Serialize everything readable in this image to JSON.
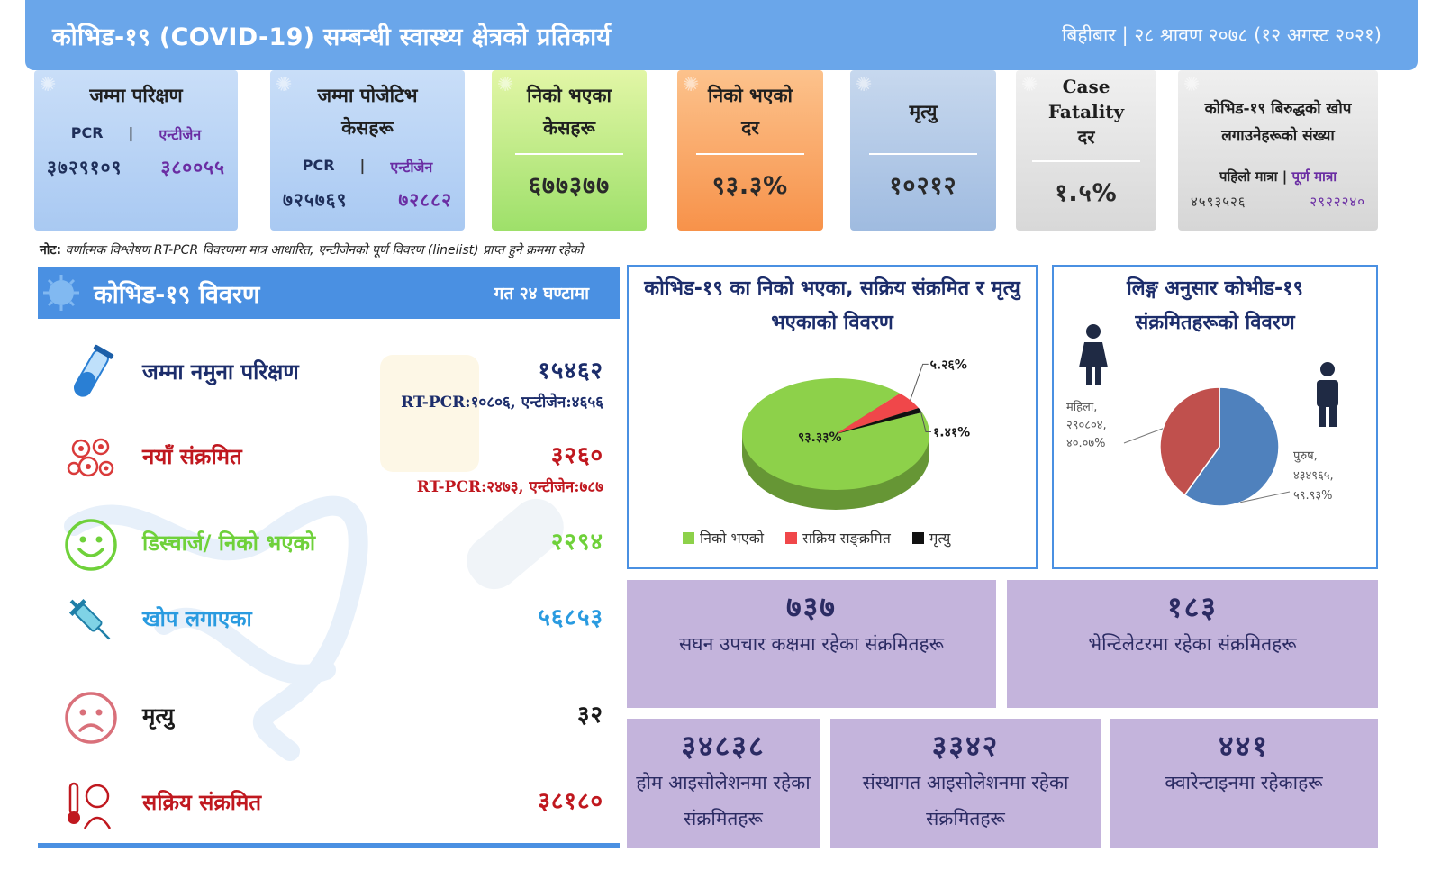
{
  "header": {
    "title": "कोभिड-१९ (COVID-19) सम्बन्धी स्वास्थ्य क्षेत्रको प्रतिकार्य",
    "date": "बिहीबार | २८ श्रावण २०७८ (१२ अगस्ट २०२१)"
  },
  "cards": {
    "total_tests": {
      "label": "जम्मा परिक्षण",
      "pcr_label": "PCR",
      "sep": "|",
      "antigen_label": "एन्टीजेन",
      "pcr_value": "३७२९१०९",
      "antigen_value": "३८००५५"
    },
    "total_positive": {
      "label": "जम्मा पोजेटिभ केसहरू",
      "pcr_label": "PCR",
      "sep": "|",
      "antigen_label": "एन्टीजेन",
      "pcr_value": "७२५७६९",
      "antigen_value": "७२८८२"
    },
    "recovered": {
      "label": "निको भएका केसहरू",
      "value": "६७७३७७"
    },
    "recovery_rate": {
      "label": "निको भएको दर",
      "value": "९३.३%"
    },
    "deaths": {
      "label": "मृत्यु",
      "value": "१०२१२"
    },
    "cfr": {
      "label": "Case Fatality दर",
      "value": "१.५%"
    },
    "vaccinated": {
      "label": "कोभिड-१९ बिरुद्धको खोप लगाउनेहरूको संख्या",
      "first_dose_label": "पहिलो मात्रा",
      "sep": "|",
      "full_dose_label": "पूर्ण मात्रा",
      "first_dose_value": "४५९३५२६",
      "full_dose_value": "२९२२२४०"
    }
  },
  "note": {
    "prefix": "नोट:",
    "text": "वर्णात्मक विश्लेषण RT-PCR विवरणमा मात्र आधारित, एन्टीजेनको पूर्ण विवरण (linelist) प्राप्त हुने क्रममा रहेको"
  },
  "last24": {
    "title": "कोभिड-१९ विवरण",
    "subtitle": "गत २४ घण्टामा",
    "rows": [
      {
        "label": "जम्मा नमुना परिक्षण",
        "value": "१५४६२",
        "sub": "RT-PCR:१०८०६, एन्टीजेन:४६५६"
      },
      {
        "label": "नयाँ संक्रमित",
        "value": "३२६०",
        "sub": "RT-PCR:२४७३, एन्टीजेन:७८७"
      },
      {
        "label": "डिस्चार्ज/ निको भएको",
        "value": "२२९४"
      },
      {
        "label": "खोप लगाएका",
        "value": "५६८५३"
      },
      {
        "label": "मृत्यु",
        "value": "३२"
      },
      {
        "label": "सक्रिय संक्रमित",
        "value": "३८१८०"
      }
    ]
  },
  "chart_data": [
    {
      "type": "pie",
      "title": "कोभिड-१९ का निको भएका, सक्रिय संक्रमित र मृत्यु भएकाको विवरण",
      "categories": [
        "निको भएको",
        "सक्रिय सङ्क्रमित",
        "मृत्यु"
      ],
      "values": [
        93.33,
        5.26,
        1.41
      ],
      "labels": [
        "९३.३३%",
        "५.२६%",
        "१.४१%"
      ],
      "colors": [
        "#8dd14a",
        "#f0474a",
        "#111111"
      ],
      "legend": "bottom"
    },
    {
      "type": "pie",
      "title": "लिङ्ग अनुसार कोभीड-१९ संक्रमितहरूको विवरण",
      "categories": [
        "महिला",
        "पुरुष"
      ],
      "values": [
        40.07,
        59.93
      ],
      "labels": [
        "महिला, २९०८०४, ४०.०७%",
        "पुरुष, ४३४९६५, ५९.९३%"
      ],
      "colors": [
        "#c0504d",
        "#4f81bd"
      ],
      "legend": "none"
    }
  ],
  "boxes": [
    {
      "number": "७३७",
      "label": "सघन उपचार कक्षमा रहेका संक्रमितहरू"
    },
    {
      "number": "१८३",
      "label": "भेन्टिलेटरमा रहेका संक्रमितहरू"
    },
    {
      "number": "३४८३८",
      "label": "होम आइसोलेशनमा रहेका संक्रमितहरू"
    },
    {
      "number": "३३४२",
      "label": "संस्थागत आइसोलेशनमा रहेका संक्रमितहरू"
    },
    {
      "number": "४४१",
      "label": "क्वारेन्टाइनमा रहेकाहरू"
    }
  ],
  "colors": {
    "header": "#6aa6ea",
    "panel_accent": "#4a90e2",
    "box_purple": "#c4b4dc",
    "red": "#c0181f",
    "green": "#6fd13a"
  },
  "icons": [
    "virus-icon",
    "test-tube-icon",
    "virus-cluster-icon",
    "smile-icon",
    "syringe-icon",
    "sad-face-icon",
    "fever-person-icon",
    "female-icon",
    "male-icon"
  ]
}
